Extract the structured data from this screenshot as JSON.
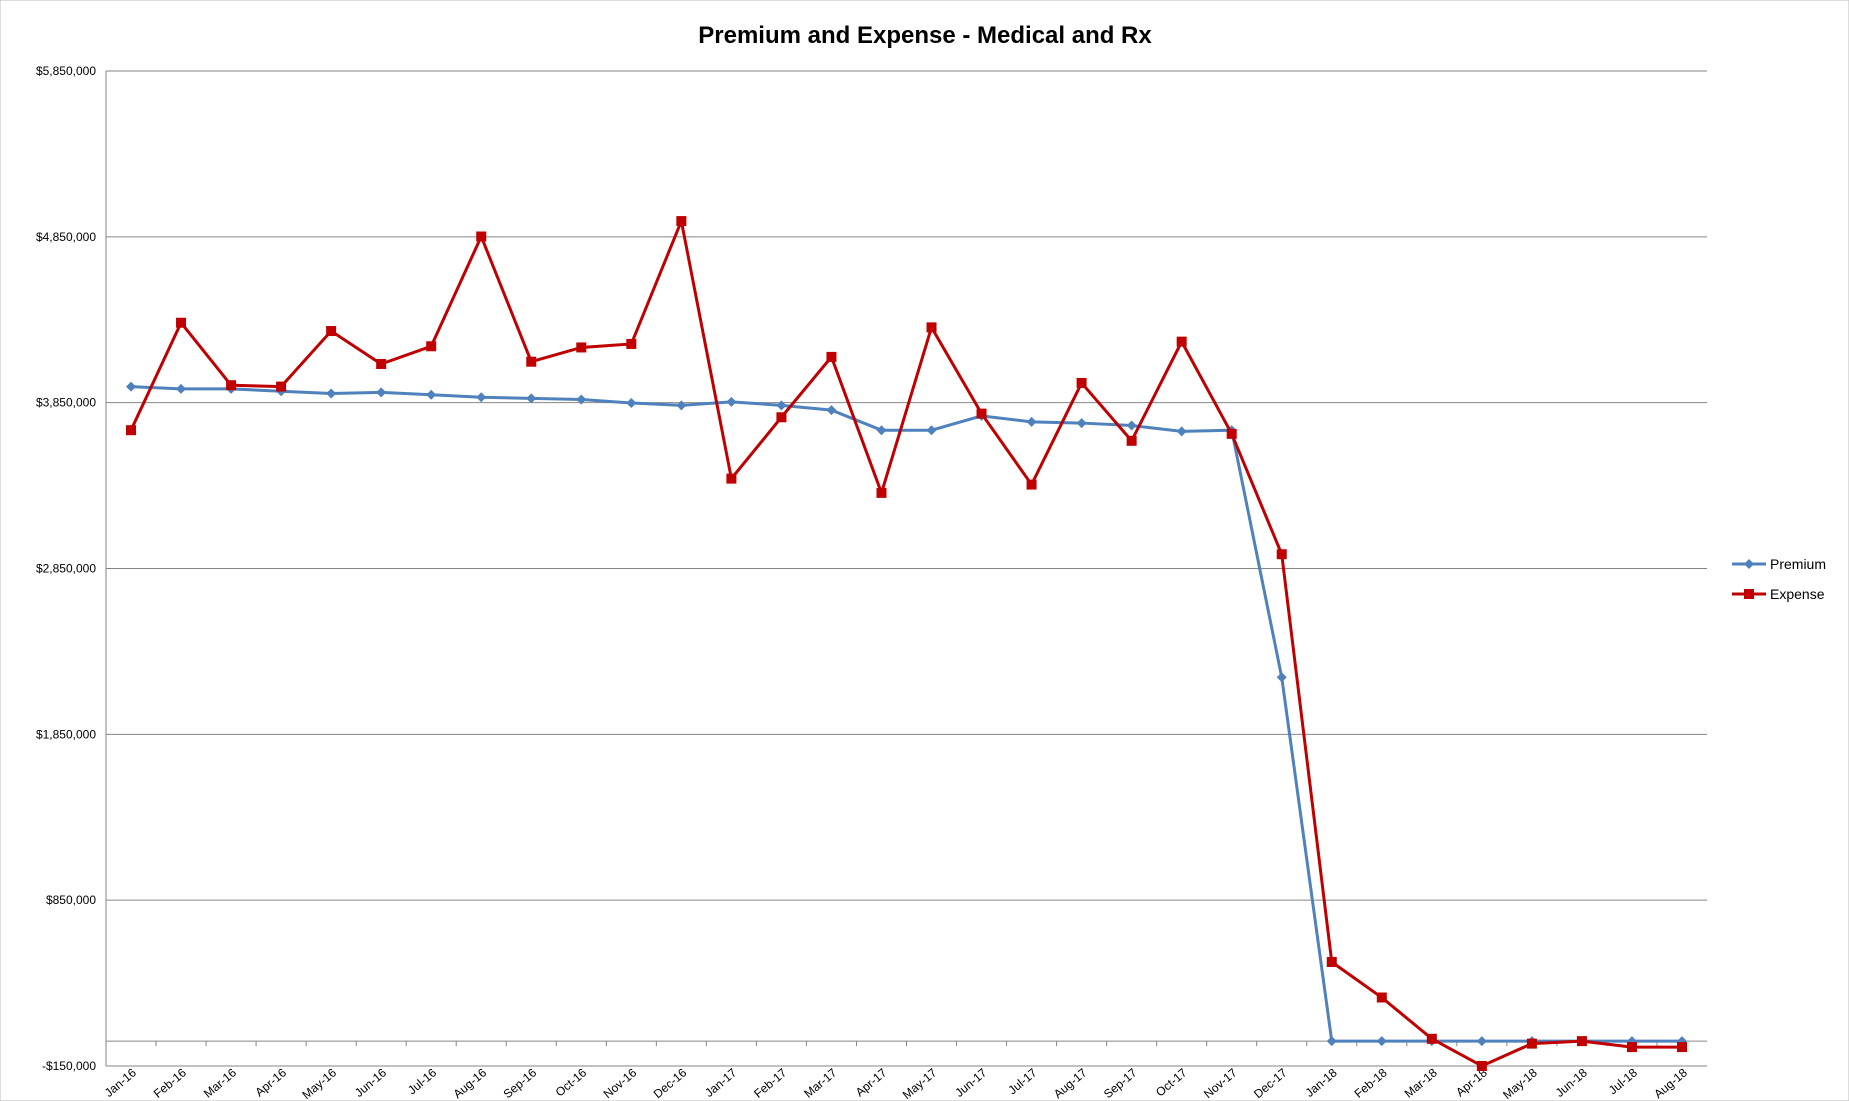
{
  "chart_data": {
    "type": "line",
    "title": "Premium and Expense - Medical and Rx",
    "categories": [
      "Jan-16",
      "Feb-16",
      "Mar-16",
      "Apr-16",
      "May-16",
      "Jun-16",
      "Jul-16",
      "Aug-16",
      "Sep-16",
      "Oct-16",
      "Nov-16",
      "Dec-16",
      "Jan-17",
      "Feb-17",
      "Mar-17",
      "Apr-17",
      "May-17",
      "Jun-17",
      "Jul-17",
      "Aug-17",
      "Sep-17",
      "Oct-17",
      "Nov-17",
      "Dec-17",
      "Jan-18",
      "Feb-18",
      "Mar-18",
      "Apr-18",
      "May-18",
      "Jun-18",
      "Jul-18",
      "Aug-18"
    ],
    "series": [
      {
        "name": "Premium",
        "color": "#4f81bd",
        "marker": "diamond",
        "values": [
          3947000,
          3933000,
          3933000,
          3919000,
          3905000,
          3912000,
          3898000,
          3883000,
          3876000,
          3869000,
          3848000,
          3834000,
          3855000,
          3834000,
          3805000,
          3684000,
          3684000,
          3770000,
          3734000,
          3727000,
          3712000,
          3677000,
          3684000,
          2194000,
          0,
          0,
          0,
          0,
          0,
          0,
          0,
          0
        ]
      },
      {
        "name": "Expense",
        "color": "#c00000",
        "marker": "square",
        "values": [
          3684000,
          4332000,
          3955000,
          3947000,
          4282000,
          4083000,
          4190000,
          4852000,
          4097000,
          4183000,
          4204000,
          4945000,
          3392000,
          3762000,
          4126000,
          3306000,
          4304000,
          3784000,
          3356000,
          3969000,
          3620000,
          4218000,
          3662000,
          2936000,
          477000,
          263000,
          14000,
          -150000,
          -15000,
          0,
          -36000,
          -36000
        ]
      }
    ],
    "ylim": [
      -150000,
      5850000
    ],
    "yticks": [
      {
        "value": -150000,
        "label": "-$150,000"
      },
      {
        "value": 850000,
        "label": "$850,000"
      },
      {
        "value": 1850000,
        "label": "$1,850,000"
      },
      {
        "value": 2850000,
        "label": "$2,850,000"
      },
      {
        "value": 3850000,
        "label": "$3,850,000"
      },
      {
        "value": 4850000,
        "label": "$4,850,000"
      },
      {
        "value": 5850000,
        "label": "$5,850,000"
      }
    ],
    "grid": true,
    "legend": "right"
  }
}
